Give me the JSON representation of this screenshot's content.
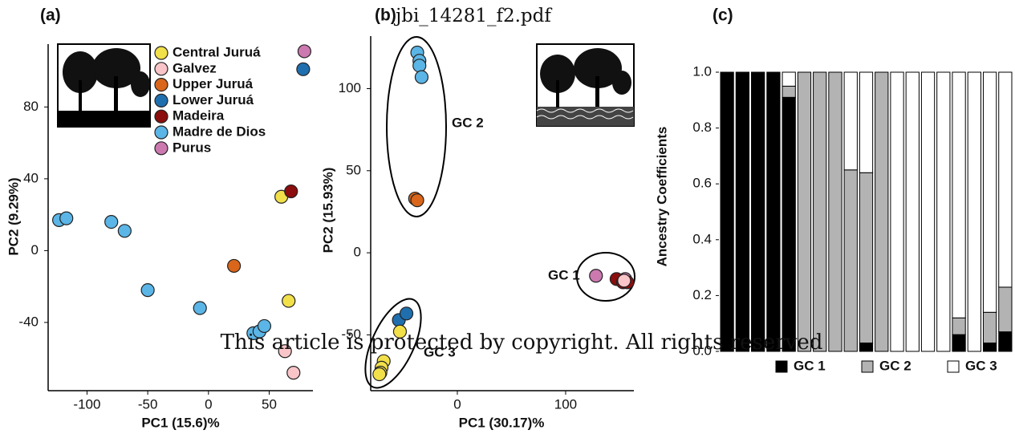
{
  "header": {
    "title": "jbi_14281_f2.pdf",
    "watermark": "This article is protected by copyright. All rights reserved"
  },
  "chart_data": [
    {
      "type": "scatter",
      "panel_label": "(a)",
      "x_label": "PC1 (15.6)%",
      "y_label": "PC2 (9.29%)",
      "xlim": [
        -132,
        86
      ],
      "ylim": [
        -78,
        115
      ],
      "xticks": [
        -100,
        -50,
        0,
        50
      ],
      "yticks": [
        -40,
        0,
        40,
        80
      ],
      "series": [
        {
          "name": "Central Juruá",
          "color": "#f2e04a",
          "x": [
            60,
            66
          ],
          "values": [
            30,
            -28
          ]
        },
        {
          "name": "Galvez",
          "color": "#f9c5c8",
          "x": [
            63,
            70
          ],
          "values": [
            -56,
            -68
          ]
        },
        {
          "name": "Upper Juruá",
          "color": "#d9661a",
          "x": [
            21
          ],
          "values": [
            -8.5
          ]
        },
        {
          "name": "Lower Juruá",
          "color": "#1f6fae",
          "x": [
            78
          ],
          "values": [
            101
          ]
        },
        {
          "name": "Madeira",
          "color": "#8b0d0d",
          "x": [
            68
          ],
          "values": [
            33
          ]
        },
        {
          "name": "Madre de Dios",
          "color": "#5bb5e6",
          "x": [
            -123,
            -117,
            -80,
            -69,
            -50,
            -7,
            37,
            42,
            46
          ],
          "values": [
            17,
            18,
            16,
            11,
            -22,
            -32,
            -46,
            -45,
            -42
          ]
        },
        {
          "name": "Purus",
          "color": "#cc79b0",
          "x": [
            79
          ],
          "values": [
            111
          ]
        }
      ]
    },
    {
      "type": "scatter",
      "panel_label": "(b)",
      "x_label": "PC1 (30.17)%",
      "y_label": "PC2 (15.93%)",
      "xlim": [
        -80,
        163
      ],
      "ylim": [
        -84,
        132
      ],
      "xticks": [
        0,
        100
      ],
      "yticks": [
        -50,
        0,
        50,
        100
      ],
      "annotations": [
        "GC 1",
        "GC 2",
        "GC 3"
      ],
      "series": [
        {
          "color": "#5bb5e6",
          "x": [
            -37,
            -35,
            -35,
            -33
          ],
          "values": [
            122,
            117,
            114,
            107
          ]
        },
        {
          "color": "#d9661a",
          "x": [
            -39,
            -37
          ],
          "values": [
            33,
            32
          ]
        },
        {
          "color": "#1f6fae",
          "x": [
            -54,
            -47
          ],
          "values": [
            -41,
            -37
          ]
        },
        {
          "color": "#f2e04a",
          "x": [
            -53,
            -68,
            -70,
            -71,
            -72
          ],
          "values": [
            -48,
            -66,
            -70,
            -73,
            -74
          ]
        },
        {
          "color": "#cc79b0",
          "x": [
            128,
            155
          ],
          "values": [
            -14,
            -16
          ]
        },
        {
          "color": "#8b0d0d",
          "x": [
            147,
            153,
            157
          ],
          "values": [
            -16,
            -18,
            -18
          ]
        },
        {
          "color": "#f9c5c8",
          "x": [
            154
          ],
          "values": [
            -17
          ]
        }
      ]
    },
    {
      "type": "stacked_bar",
      "panel_label": "(c)",
      "y_label": "Ancestry Coefficients",
      "ylim": [
        0,
        1
      ],
      "yticks": [
        {
          "value": 0,
          "label": "0.0"
        },
        0.2,
        0.4,
        0.6,
        0.8,
        {
          "value": 1,
          "label": "1.0"
        }
      ],
      "series": [
        {
          "name": "GC 1",
          "color": "#000000",
          "values": [
            1,
            1,
            1,
            1,
            0.91,
            0,
            0,
            0,
            0,
            0.03,
            0,
            0,
            0,
            0,
            0,
            0.06,
            0,
            0.03,
            0.07
          ]
        },
        {
          "name": "GC 2",
          "color": "#b3b3b3",
          "values": [
            0,
            0,
            0,
            0,
            0.04,
            1,
            1,
            1,
            0.65,
            0.61,
            1,
            0,
            0,
            0,
            0,
            0.06,
            0,
            0.11,
            0.16
          ]
        },
        {
          "name": "GC 3",
          "color": "#ffffff",
          "values": [
            0,
            0,
            0,
            0,
            0.05,
            0,
            0,
            0,
            0.35,
            0.36,
            0,
            1,
            1,
            1,
            1,
            0.88,
            1,
            0.86,
            0.77
          ]
        }
      ]
    }
  ]
}
